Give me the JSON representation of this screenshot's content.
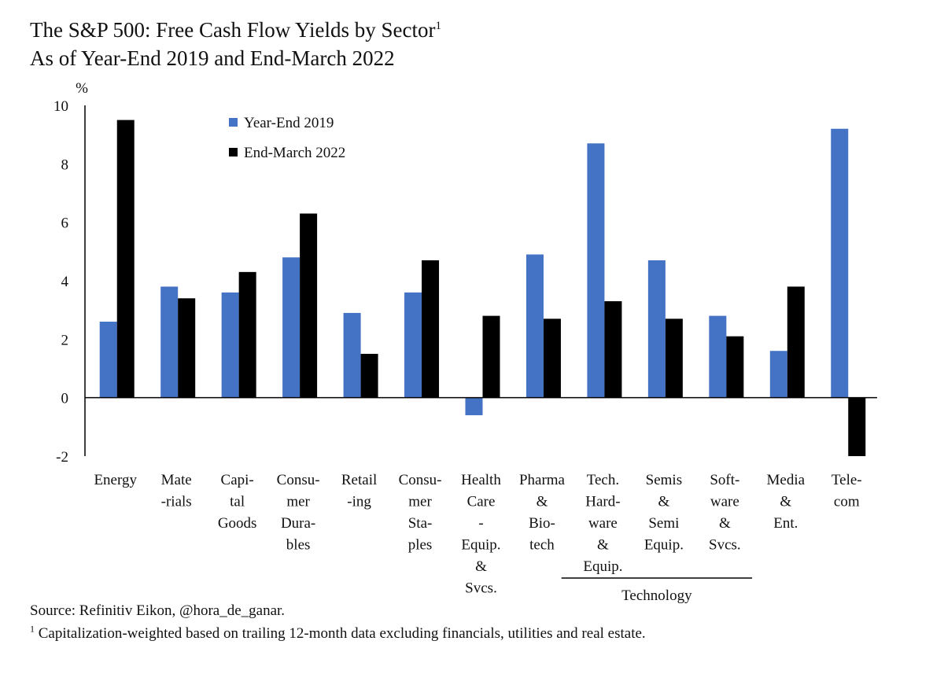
{
  "title": {
    "line1": "The S&P 500: Free Cash Flow Yields by Sector",
    "line1_sup": "1",
    "line2": "As of Year-End 2019 and End-March 2022"
  },
  "chart_data": {
    "type": "bar",
    "ylabel": "%",
    "ylim": [
      -2,
      10
    ],
    "yticks": [
      "-2",
      "0",
      "2",
      "4",
      "6",
      "8",
      "10"
    ],
    "categories": [
      [
        "Energy"
      ],
      [
        "Mate",
        "-rials"
      ],
      [
        "Capi-",
        "tal",
        "Goods"
      ],
      [
        "Consu-",
        "mer",
        "Dura-",
        "bles"
      ],
      [
        "Retail",
        "-ing"
      ],
      [
        "Consu-",
        "mer",
        "Sta-",
        "ples"
      ],
      [
        "Health",
        "Care",
        "-",
        "Equip.",
        "&",
        "Svcs."
      ],
      [
        "Pharma",
        "&",
        "Bio-",
        "tech"
      ],
      [
        "Tech.",
        "Hard-",
        "ware",
        "&",
        "Equip."
      ],
      [
        "Semis",
        "&",
        "Semi",
        "Equip."
      ],
      [
        "Soft-",
        "ware",
        "&",
        "Svcs."
      ],
      [
        "Media",
        "&",
        "Ent."
      ],
      [
        "Tele-",
        "com"
      ]
    ],
    "series": [
      {
        "name": "Year-End 2019",
        "color": "#4472C4",
        "values": [
          2.6,
          3.8,
          3.6,
          4.8,
          2.9,
          3.6,
          -0.6,
          4.9,
          8.7,
          4.7,
          2.8,
          1.6,
          9.2
        ]
      },
      {
        "name": "End-March 2022",
        "color": "#000000",
        "values": [
          9.5,
          3.4,
          4.3,
          6.3,
          1.5,
          4.7,
          2.8,
          2.7,
          3.3,
          2.7,
          2.1,
          3.8,
          -2.0
        ]
      }
    ],
    "group_label": "Technology",
    "legend_position": "top-center"
  },
  "footnotes": {
    "source": "Source: Refinitiv Eikon, @hora_de_ganar.",
    "note_sup": "1",
    "note": "Capitalization-weighted based on trailing 12-month data excluding financials, utilities and real estate."
  }
}
